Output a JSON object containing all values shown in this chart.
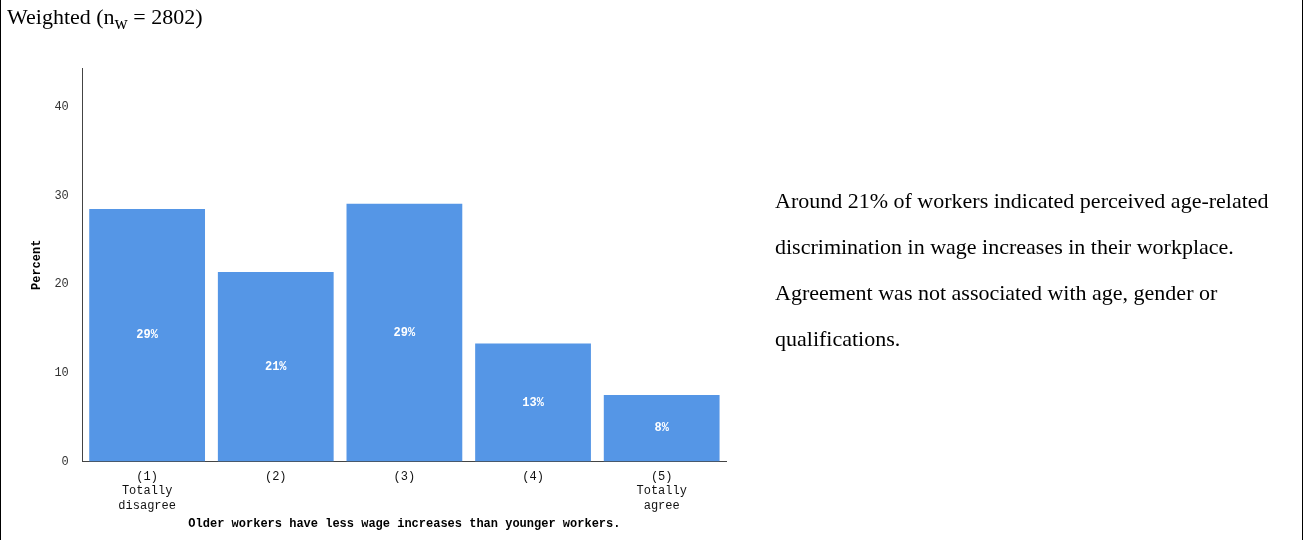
{
  "chart_data": {
    "type": "bar",
    "title": "Weighted (n$_{w}$ = 2802)",
    "xlabel": "Older workers have less wage increases than younger workers.",
    "ylabel": "Percent",
    "categories": [
      "(1)\nTotally\ndisagree",
      "(2)",
      "(3)",
      "(4)",
      "(5)\nTotally\nagree"
    ],
    "values": [
      28.5,
      21.4,
      29.1,
      13.3,
      7.5
    ],
    "value_labels": [
      "29%",
      "21%",
      "29%",
      "13%",
      "8%"
    ],
    "color": "#5596e6",
    "ylim": [
      0,
      44.4
    ],
    "yticks": [
      0,
      10,
      20,
      30,
      40
    ],
    "grid": false,
    "legend": false,
    "annotations": [
      "Around 21% of workers indicated perceived age-related discrimination in wage increases in their workplace. Agreement was not associated with age, gender or qualifications."
    ]
  }
}
